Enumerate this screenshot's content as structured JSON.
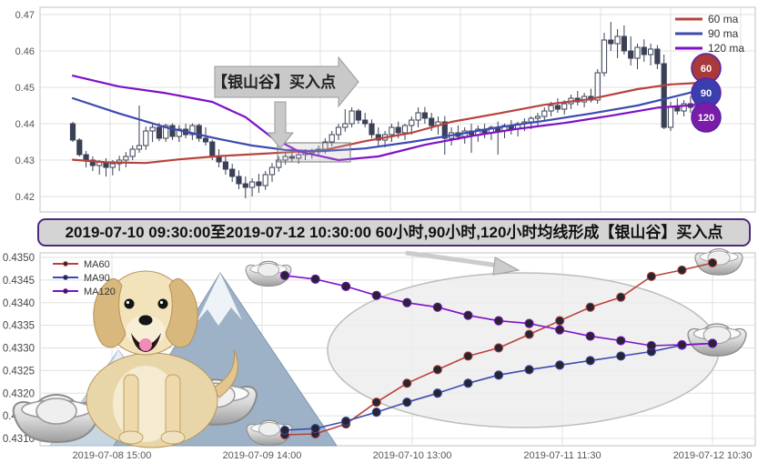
{
  "banner": {
    "text": "2019-07-10 09:30:00至2019-07-12 10:30:00 60小时,90小时,120小时均线形成【银山谷】买入点"
  },
  "colors": {
    "ma60": "#b8423e",
    "ma90": "#3c4ab0",
    "ma120": "#7e10c8",
    "candle": "#3a4156",
    "grid": "#e0e0e0",
    "frame": "#c0c0c0",
    "callout": "#c9c9c9",
    "badge60": "#a93a3c",
    "badge90": "#3b3fae",
    "badge120": "#7a1ca8",
    "banner_bg": "#d4d4d4",
    "banner_border": "#4b2a7e",
    "ellipse_fill": "#ececec",
    "ellipse_stroke": "#bdbdbd",
    "dot": "#262630"
  },
  "icons": {
    "dog": "golden-retriever-puppy-illustration",
    "mountain": "snow-mountain-illustration",
    "ingot": "silver-yuanbao-ingot-icon",
    "callout_right": "right-arrow-callout",
    "callout_down": "down-arrow",
    "banner_arrow": "gray-arrow-to-ellipse"
  },
  "chart_data": [
    {
      "id": "hourly-candlestick-chart",
      "type": "candlestick",
      "title": "",
      "ylim": [
        0.4158,
        0.472
      ],
      "yticks": [
        0.42,
        0.43,
        0.44,
        0.45,
        0.46,
        0.47
      ],
      "grid": true,
      "legend_position": "top-right",
      "annotation": {
        "label": "【银山谷】买入点"
      },
      "badges": [
        {
          "label": "60",
          "color": "badge60"
        },
        {
          "label": "90",
          "color": "badge90"
        },
        {
          "label": "120",
          "color": "badge120"
        }
      ],
      "series": [
        {
          "name": "60 ma",
          "color": "ma60",
          "points": [
            [
              0,
              0.4301
            ],
            [
              5,
              0.4294
            ],
            [
              11,
              0.4292
            ],
            [
              16,
              0.4302
            ],
            [
              22,
              0.4311
            ],
            [
              27,
              0.4316
            ],
            [
              33,
              0.4322
            ],
            [
              38,
              0.4328
            ],
            [
              44,
              0.4352
            ],
            [
              51,
              0.4375
            ],
            [
              57,
              0.4405
            ],
            [
              64,
              0.4428
            ],
            [
              71,
              0.4452
            ],
            [
              78,
              0.4468
            ],
            [
              85,
              0.4495
            ],
            [
              90,
              0.4508
            ],
            [
              94,
              0.4512
            ]
          ]
        },
        {
          "name": "90 ma",
          "color": "ma90",
          "points": [
            [
              0,
              0.447
            ],
            [
              7,
              0.4428
            ],
            [
              14,
              0.439
            ],
            [
              22,
              0.4358
            ],
            [
              27,
              0.434
            ],
            [
              32,
              0.4328
            ],
            [
              37,
              0.4324
            ],
            [
              44,
              0.4332
            ],
            [
              51,
              0.435
            ],
            [
              57,
              0.4368
            ],
            [
              64,
              0.439
            ],
            [
              71,
              0.4408
            ],
            [
              78,
              0.4428
            ],
            [
              85,
              0.445
            ],
            [
              90,
              0.4472
            ],
            [
              94,
              0.449
            ]
          ]
        },
        {
          "name": "120 ma",
          "color": "ma120",
          "points": [
            [
              0,
              0.4532
            ],
            [
              7,
              0.4502
            ],
            [
              14,
              0.4484
            ],
            [
              21,
              0.446
            ],
            [
              26,
              0.4418
            ],
            [
              30,
              0.4362
            ],
            [
              34,
              0.4324
            ],
            [
              40,
              0.43
            ],
            [
              46,
              0.431
            ],
            [
              53,
              0.4342
            ],
            [
              60,
              0.4366
            ],
            [
              67,
              0.4386
            ],
            [
              74,
              0.4402
            ],
            [
              81,
              0.4422
            ],
            [
              88,
              0.4444
            ],
            [
              94,
              0.4452
            ]
          ]
        }
      ],
      "candles": [
        [
          0.44,
          0.4405,
          0.435,
          0.4355
        ],
        [
          0.4355,
          0.436,
          0.431,
          0.4315
        ],
        [
          0.4315,
          0.4325,
          0.428,
          0.43
        ],
        [
          0.43,
          0.431,
          0.427,
          0.4285
        ],
        [
          0.4285,
          0.43,
          0.426,
          0.4295
        ],
        [
          0.4295,
          0.4305,
          0.4255,
          0.428
        ],
        [
          0.428,
          0.43,
          0.4258,
          0.429
        ],
        [
          0.429,
          0.4312,
          0.427,
          0.43
        ],
        [
          0.43,
          0.4322,
          0.428,
          0.431
        ],
        [
          0.431,
          0.434,
          0.43,
          0.433
        ],
        [
          0.433,
          0.445,
          0.432,
          0.434
        ],
        [
          0.434,
          0.4392,
          0.4328,
          0.438
        ],
        [
          0.438,
          0.44,
          0.435,
          0.439
        ],
        [
          0.439,
          0.4402,
          0.4352,
          0.436
        ],
        [
          0.436,
          0.44,
          0.435,
          0.4395
        ],
        [
          0.4395,
          0.4401,
          0.4355,
          0.4365
        ],
        [
          0.4365,
          0.4396,
          0.435,
          0.4385
        ],
        [
          0.4385,
          0.44,
          0.436,
          0.437
        ],
        [
          0.437,
          0.4401,
          0.4355,
          0.4395
        ],
        [
          0.4395,
          0.44,
          0.435,
          0.436
        ],
        [
          0.436,
          0.439,
          0.434,
          0.435
        ],
        [
          0.435,
          0.4356,
          0.43,
          0.431
        ],
        [
          0.431,
          0.433,
          0.428,
          0.4295
        ],
        [
          0.4295,
          0.4312,
          0.426,
          0.4275
        ],
        [
          0.4275,
          0.429,
          0.424,
          0.4255
        ],
        [
          0.4255,
          0.4272,
          0.422,
          0.4235
        ],
        [
          0.4235,
          0.4255,
          0.4195,
          0.4225
        ],
        [
          0.4225,
          0.425,
          0.42,
          0.424
        ],
        [
          0.424,
          0.4262,
          0.421,
          0.423
        ],
        [
          0.423,
          0.427,
          0.4218,
          0.426
        ],
        [
          0.426,
          0.4292,
          0.424,
          0.428
        ],
        [
          0.428,
          0.431,
          0.4268,
          0.43
        ],
        [
          0.43,
          0.432,
          0.4288,
          0.431
        ],
        [
          0.431,
          0.4326,
          0.4294,
          0.4305
        ],
        [
          0.4305,
          0.4321,
          0.429,
          0.4315
        ],
        [
          0.4315,
          0.433,
          0.43,
          0.432
        ],
        [
          0.432,
          0.4331,
          0.4304,
          0.4325
        ],
        [
          0.4325,
          0.434,
          0.431,
          0.433
        ],
        [
          0.433,
          0.436,
          0.4318,
          0.435
        ],
        [
          0.435,
          0.438,
          0.4338,
          0.437
        ],
        [
          0.437,
          0.44,
          0.4355,
          0.439
        ],
        [
          0.439,
          0.444,
          0.4378,
          0.44
        ],
        [
          0.44,
          0.4445,
          0.439,
          0.4435
        ],
        [
          0.4435,
          0.4441,
          0.44,
          0.441
        ],
        [
          0.441,
          0.443,
          0.439,
          0.44
        ],
        [
          0.44,
          0.4412,
          0.436,
          0.437
        ],
        [
          0.437,
          0.439,
          0.434,
          0.4355
        ],
        [
          0.4355,
          0.438,
          0.4335,
          0.437
        ],
        [
          0.437,
          0.44,
          0.435,
          0.439
        ],
        [
          0.439,
          0.4406,
          0.436,
          0.4375
        ],
        [
          0.4375,
          0.44,
          0.4355,
          0.4395
        ],
        [
          0.4395,
          0.442,
          0.437,
          0.441
        ],
        [
          0.441,
          0.4445,
          0.439,
          0.443
        ],
        [
          0.443,
          0.4446,
          0.44,
          0.4415
        ],
        [
          0.4415,
          0.443,
          0.438,
          0.4395
        ],
        [
          0.4395,
          0.442,
          0.437,
          0.4405
        ],
        [
          0.4405,
          0.4421,
          0.4315,
          0.436
        ],
        [
          0.436,
          0.439,
          0.434,
          0.4375
        ],
        [
          0.4375,
          0.4395,
          0.4355,
          0.4365
        ],
        [
          0.4365,
          0.439,
          0.4345,
          0.438
        ],
        [
          0.438,
          0.44,
          0.432,
          0.437
        ],
        [
          0.437,
          0.4395,
          0.435,
          0.4385
        ],
        [
          0.4385,
          0.44,
          0.436,
          0.4375
        ],
        [
          0.4375,
          0.4395,
          0.4355,
          0.439
        ],
        [
          0.439,
          0.4406,
          0.4315,
          0.438
        ],
        [
          0.438,
          0.44,
          0.436,
          0.4395
        ],
        [
          0.4395,
          0.441,
          0.437,
          0.4385
        ],
        [
          0.4385,
          0.4405,
          0.4365,
          0.44
        ],
        [
          0.44,
          0.4415,
          0.438,
          0.4405
        ],
        [
          0.4405,
          0.442,
          0.4385,
          0.4415
        ],
        [
          0.4415,
          0.443,
          0.4395,
          0.442
        ],
        [
          0.442,
          0.4445,
          0.4405,
          0.4435
        ],
        [
          0.4435,
          0.446,
          0.442,
          0.445
        ],
        [
          0.445,
          0.447,
          0.443,
          0.444
        ],
        [
          0.444,
          0.4465,
          0.4425,
          0.4455
        ],
        [
          0.4455,
          0.448,
          0.444,
          0.447
        ],
        [
          0.447,
          0.449,
          0.445,
          0.446
        ],
        [
          0.446,
          0.4485,
          0.4445,
          0.4475
        ],
        [
          0.4475,
          0.4496,
          0.4458,
          0.4465
        ],
        [
          0.4465,
          0.455,
          0.4455,
          0.454
        ],
        [
          0.454,
          0.465,
          0.453,
          0.463
        ],
        [
          0.463,
          0.468,
          0.46,
          0.462
        ],
        [
          0.462,
          0.466,
          0.458,
          0.464
        ],
        [
          0.464,
          0.467,
          0.459,
          0.46
        ],
        [
          0.46,
          0.464,
          0.456,
          0.458
        ],
        [
          0.458,
          0.462,
          0.455,
          0.461
        ],
        [
          0.461,
          0.4632,
          0.457,
          0.459
        ],
        [
          0.459,
          0.462,
          0.456,
          0.4605
        ],
        [
          0.4605,
          0.4616,
          0.455,
          0.4565
        ],
        [
          0.4565,
          0.459,
          0.4385,
          0.439
        ],
        [
          0.439,
          0.446,
          0.438,
          0.4445
        ],
        [
          0.4445,
          0.447,
          0.4425,
          0.4435
        ],
        [
          0.4435,
          0.4465,
          0.442,
          0.4455
        ],
        [
          0.4455,
          0.4476,
          0.443,
          0.4445
        ],
        [
          0.4445,
          0.447,
          0.4425,
          0.446
        ]
      ]
    },
    {
      "id": "ma-detail-chart",
      "type": "line",
      "title": "",
      "ylim": [
        0.43085,
        0.43515
      ],
      "yticks": [
        0.435,
        0.4345,
        0.434,
        0.4335,
        0.433,
        0.4325,
        0.432,
        0.4315,
        0.431
      ],
      "xticklabels": [
        "2019-07-08 15:00",
        "2019-07-09 14:00",
        "2019-07-10 13:00",
        "2019-07-11 11:30",
        "2019-07-12 10:30"
      ],
      "grid": true,
      "legend_position": "top-left",
      "series": [
        {
          "name": "MA60",
          "color": "ma60",
          "values": [
            0.43108,
            0.4311,
            0.43132,
            0.4318,
            0.43222,
            0.43252,
            0.43282,
            0.433,
            0.4333,
            0.4336,
            0.4339,
            0.43412,
            0.43458,
            0.43472,
            0.43488
          ]
        },
        {
          "name": "MA90",
          "color": "ma90",
          "values": [
            0.43118,
            0.43122,
            0.43138,
            0.43158,
            0.4318,
            0.432,
            0.43222,
            0.4324,
            0.43252,
            0.43262,
            0.43272,
            0.43282,
            0.43292,
            0.43306,
            0.4331
          ]
        },
        {
          "name": "MA120",
          "color": "ma120",
          "values": [
            0.4346,
            0.43452,
            0.43436,
            0.43416,
            0.434,
            0.4339,
            0.43372,
            0.4336,
            0.43354,
            0.4334,
            0.43326,
            0.43316,
            0.43305,
            0.43307,
            0.4331
          ]
        }
      ]
    }
  ]
}
